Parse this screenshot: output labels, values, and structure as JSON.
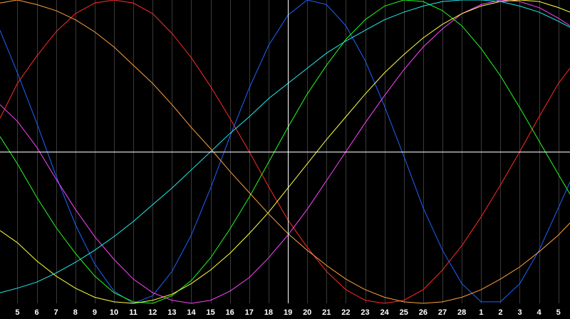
{
  "chart_data": {
    "type": "line",
    "title": "",
    "xlabel": "",
    "ylabel": "",
    "grid": true,
    "background_color": "#000000",
    "grid_color": "#3a3a3a",
    "axis_color": "#ffffff",
    "x_tick_labels": [
      "5",
      "6",
      "7",
      "8",
      "9",
      "10",
      "11",
      "12",
      "13",
      "14",
      "15",
      "16",
      "17",
      "18",
      "19",
      "20",
      "21",
      "22",
      "23",
      "24",
      "25",
      "26",
      "27",
      "28",
      "1",
      "2",
      "3",
      "4",
      "5"
    ],
    "x_range": [
      4.1,
      33.6
    ],
    "y_range": [
      -1,
      1
    ],
    "center_line_x": 19,
    "series": [
      {
        "color": "#ff2a2a",
        "values": [
          [
            4.1,
            0.22
          ],
          [
            5,
            0.45
          ],
          [
            6,
            0.63
          ],
          [
            7,
            0.79
          ],
          [
            8,
            0.91
          ],
          [
            9,
            0.98
          ],
          [
            10,
            1.0
          ],
          [
            11,
            0.98
          ],
          [
            12,
            0.91
          ],
          [
            13,
            0.78
          ],
          [
            14,
            0.62
          ],
          [
            15,
            0.43
          ],
          [
            16,
            0.22
          ],
          [
            17,
            0.0
          ],
          [
            18,
            -0.23
          ],
          [
            19,
            -0.45
          ],
          [
            20,
            -0.63
          ],
          [
            21,
            -0.79
          ],
          [
            22,
            -0.91
          ],
          [
            23,
            -0.98
          ],
          [
            24,
            -1.0
          ],
          [
            25,
            -0.98
          ],
          [
            26,
            -0.91
          ],
          [
            27,
            -0.78
          ],
          [
            28,
            -0.62
          ],
          [
            29,
            -0.43
          ],
          [
            30,
            -0.22
          ],
          [
            31,
            0.0
          ],
          [
            32,
            0.23
          ],
          [
            33,
            0.45
          ],
          [
            33.6,
            0.55
          ]
        ]
      },
      {
        "color": "#1e64ff",
        "values": [
          [
            4.1,
            0.8
          ],
          [
            5,
            0.52
          ],
          [
            6,
            0.19
          ],
          [
            7,
            -0.16
          ],
          [
            8,
            -0.48
          ],
          [
            9,
            -0.74
          ],
          [
            10,
            -0.92
          ],
          [
            11,
            -1.0
          ],
          [
            12,
            -0.95
          ],
          [
            13,
            -0.79
          ],
          [
            14,
            -0.55
          ],
          [
            15,
            -0.24
          ],
          [
            16,
            0.1
          ],
          [
            17,
            0.42
          ],
          [
            18,
            0.7
          ],
          [
            19,
            0.9
          ],
          [
            20,
            1.0
          ],
          [
            21,
            0.97
          ],
          [
            22,
            0.83
          ],
          [
            23,
            0.6
          ],
          [
            24,
            0.3
          ],
          [
            25,
            -0.03
          ],
          [
            26,
            -0.37
          ],
          [
            27,
            -0.65
          ],
          [
            28,
            -0.87
          ],
          [
            29,
            -0.99
          ],
          [
            30,
            -0.99
          ],
          [
            31,
            -0.87
          ],
          [
            32,
            -0.65
          ],
          [
            33,
            -0.37
          ],
          [
            33.6,
            -0.2
          ]
        ]
      },
      {
        "color": "#ff44ff",
        "values": [
          [
            4.1,
            0.31
          ],
          [
            5,
            0.2
          ],
          [
            6,
            0.03
          ],
          [
            7,
            -0.18
          ],
          [
            8,
            -0.38
          ],
          [
            9,
            -0.56
          ],
          [
            10,
            -0.71
          ],
          [
            11,
            -0.84
          ],
          [
            12,
            -0.93
          ],
          [
            13,
            -0.98
          ],
          [
            14,
            -1.0
          ],
          [
            15,
            -0.98
          ],
          [
            16,
            -0.92
          ],
          [
            17,
            -0.83
          ],
          [
            18,
            -0.7
          ],
          [
            19,
            -0.55
          ],
          [
            20,
            -0.38
          ],
          [
            21,
            -0.19
          ],
          [
            22,
            0.0
          ],
          [
            23,
            0.19
          ],
          [
            24,
            0.37
          ],
          [
            25,
            0.54
          ],
          [
            26,
            0.69
          ],
          [
            27,
            0.81
          ],
          [
            28,
            0.91
          ],
          [
            29,
            0.97
          ],
          [
            30,
            1.0
          ],
          [
            31,
            0.99
          ],
          [
            32,
            0.95
          ],
          [
            33,
            0.88
          ],
          [
            33.6,
            0.83
          ]
        ]
      },
      {
        "color": "#22ff22",
        "values": [
          [
            4.1,
            0.1
          ],
          [
            5,
            -0.08
          ],
          [
            6,
            -0.3
          ],
          [
            7,
            -0.5
          ],
          [
            8,
            -0.67
          ],
          [
            9,
            -0.82
          ],
          [
            10,
            -0.93
          ],
          [
            11,
            -0.99
          ],
          [
            12,
            -1.0
          ],
          [
            13,
            -0.95
          ],
          [
            14,
            -0.85
          ],
          [
            15,
            -0.7
          ],
          [
            16,
            -0.51
          ],
          [
            17,
            -0.3
          ],
          [
            18,
            -0.07
          ],
          [
            19,
            0.16
          ],
          [
            20,
            0.38
          ],
          [
            21,
            0.57
          ],
          [
            22,
            0.74
          ],
          [
            23,
            0.87
          ],
          [
            24,
            0.96
          ],
          [
            25,
            1.0
          ],
          [
            26,
            0.99
          ],
          [
            27,
            0.93
          ],
          [
            28,
            0.83
          ],
          [
            29,
            0.68
          ],
          [
            30,
            0.5
          ],
          [
            31,
            0.29
          ],
          [
            32,
            0.07
          ],
          [
            33,
            -0.15
          ],
          [
            33.6,
            -0.28
          ]
        ]
      },
      {
        "color": "#ffff44",
        "values": [
          [
            4.1,
            -0.52
          ],
          [
            5,
            -0.6
          ],
          [
            6,
            -0.72
          ],
          [
            7,
            -0.82
          ],
          [
            8,
            -0.9
          ],
          [
            9,
            -0.96
          ],
          [
            10,
            -0.99
          ],
          [
            11,
            -1.0
          ],
          [
            12,
            -0.98
          ],
          [
            13,
            -0.94
          ],
          [
            14,
            -0.87
          ],
          [
            15,
            -0.78
          ],
          [
            16,
            -0.67
          ],
          [
            17,
            -0.54
          ],
          [
            18,
            -0.4
          ],
          [
            19,
            -0.24
          ],
          [
            20,
            -0.08
          ],
          [
            21,
            0.08
          ],
          [
            22,
            0.23
          ],
          [
            23,
            0.38
          ],
          [
            24,
            0.52
          ],
          [
            25,
            0.64
          ],
          [
            26,
            0.75
          ],
          [
            27,
            0.84
          ],
          [
            28,
            0.91
          ],
          [
            29,
            0.96
          ],
          [
            30,
            0.99
          ],
          [
            31,
            1.0
          ],
          [
            32,
            0.99
          ],
          [
            33,
            0.95
          ],
          [
            33.6,
            0.92
          ]
        ]
      },
      {
        "color": "#ffa040",
        "values": [
          [
            4.1,
            0.98
          ],
          [
            5,
            1.0
          ],
          [
            6,
            0.97
          ],
          [
            7,
            0.93
          ],
          [
            8,
            0.87
          ],
          [
            9,
            0.79
          ],
          [
            10,
            0.69
          ],
          [
            11,
            0.57
          ],
          [
            12,
            0.45
          ],
          [
            13,
            0.31
          ],
          [
            14,
            0.16
          ],
          [
            15,
            0.02
          ],
          [
            16,
            -0.13
          ],
          [
            17,
            -0.27
          ],
          [
            18,
            -0.41
          ],
          [
            19,
            -0.54
          ],
          [
            20,
            -0.65
          ],
          [
            21,
            -0.75
          ],
          [
            22,
            -0.84
          ],
          [
            23,
            -0.91
          ],
          [
            24,
            -0.96
          ],
          [
            25,
            -0.99
          ],
          [
            26,
            -1.0
          ],
          [
            27,
            -0.99
          ],
          [
            28,
            -0.96
          ],
          [
            29,
            -0.91
          ],
          [
            30,
            -0.84
          ],
          [
            31,
            -0.76
          ],
          [
            32,
            -0.66
          ],
          [
            33,
            -0.55
          ],
          [
            33.6,
            -0.47
          ]
        ]
      },
      {
        "color": "#22eeee",
        "values": [
          [
            4.1,
            -0.93
          ],
          [
            5,
            -0.9
          ],
          [
            6,
            -0.86
          ],
          [
            7,
            -0.8
          ],
          [
            8,
            -0.73
          ],
          [
            9,
            -0.65
          ],
          [
            10,
            -0.56
          ],
          [
            11,
            -0.46
          ],
          [
            12,
            -0.35
          ],
          [
            13,
            -0.24
          ],
          [
            14,
            -0.12
          ],
          [
            15,
            0.0
          ],
          [
            16,
            0.12
          ],
          [
            17,
            0.23
          ],
          [
            18,
            0.35
          ],
          [
            19,
            0.45
          ],
          [
            20,
            0.55
          ],
          [
            21,
            0.65
          ],
          [
            22,
            0.73
          ],
          [
            23,
            0.8
          ],
          [
            24,
            0.87
          ],
          [
            25,
            0.92
          ],
          [
            26,
            0.96
          ],
          [
            27,
            0.99
          ],
          [
            28,
            1.0
          ],
          [
            29,
            1.0
          ],
          [
            30,
            0.99
          ],
          [
            31,
            0.96
          ],
          [
            32,
            0.92
          ],
          [
            33,
            0.86
          ],
          [
            33.6,
            0.82
          ]
        ]
      }
    ]
  }
}
